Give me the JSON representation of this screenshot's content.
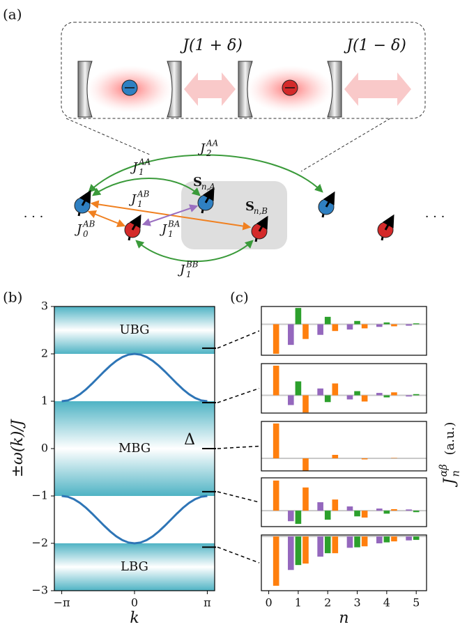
{
  "panel_labels": [
    "(a)",
    "(b)",
    "(c)"
  ],
  "diagram": {
    "couplings": [
      "J(1 + δ)",
      "J(1 − δ)"
    ],
    "labels": [
      {
        "base": "J",
        "sub": "2",
        "sup": "AA"
      },
      {
        "base": "J",
        "sub": "1",
        "sup": "AA"
      },
      {
        "base": "J",
        "sub": "1",
        "sup": "AB"
      },
      {
        "base": "J",
        "sub": "0",
        "sup": "AB"
      },
      {
        "base": "J",
        "sub": "1",
        "sup": "BA"
      },
      {
        "base": "J",
        "sub": "1",
        "sup": "BB"
      }
    ],
    "spins": [
      {
        "base": "S",
        "sub": "n,A"
      },
      {
        "base": "S",
        "sub": "n,B"
      }
    ],
    "ellipsis": [
      "· · ·",
      "· · ·"
    ]
  },
  "chart_data": [
    {
      "type": "band-structure",
      "xlabel": "k",
      "ylabel": "±ω(k)/J",
      "xlim": [
        -3.46,
        3.46
      ],
      "ylim": [
        -3,
        3
      ],
      "xticks": [
        {
          "value": -3.1416,
          "label": "−π"
        },
        0,
        {
          "value": 3.1416,
          "label": "π"
        }
      ],
      "yticks": [
        {
          "value": -3,
          "label": "−3"
        },
        {
          "value": -2,
          "label": "−2"
        },
        {
          "value": -1,
          "label": "−1"
        },
        0,
        1,
        2,
        3
      ],
      "band_color": "#4fb3c4",
      "bands": [
        {
          "label": "UBG",
          "range": [
            2,
            3
          ]
        },
        {
          "label": "MBG",
          "range": [
            -1,
            1
          ]
        },
        {
          "label": "LBG",
          "range": [
            -3,
            -2
          ]
        }
      ],
      "x": [
        -3.1416,
        -2.8798,
        -2.618,
        -2.3562,
        -2.0944,
        -1.8326,
        -1.5708,
        -1.309,
        -1.0472,
        -0.7854,
        -0.5236,
        -0.2618,
        0,
        0.2618,
        0.5236,
        0.7854,
        1.0472,
        1.309,
        1.5708,
        1.8326,
        2.0944,
        2.3562,
        2.618,
        2.8798,
        3.1416
      ],
      "series": [
        {
          "color": "#2e75b6",
          "values": [
            1,
            1.017,
            1.067,
            1.146,
            1.25,
            1.371,
            1.5,
            1.629,
            1.75,
            1.854,
            1.933,
            1.983,
            2,
            1.983,
            1.933,
            1.854,
            1.75,
            1.629,
            1.5,
            1.371,
            1.25,
            1.146,
            1.067,
            1.017,
            1
          ]
        },
        {
          "color": "#2e75b6",
          "values": [
            -1,
            -1.017,
            -1.067,
            -1.146,
            -1.25,
            -1.371,
            -1.5,
            -1.629,
            -1.75,
            -1.854,
            -1.933,
            -1.983,
            -2,
            -1.983,
            -1.933,
            -1.854,
            -1.75,
            -1.629,
            -1.5,
            -1.371,
            -1.25,
            -1.146,
            -1.067,
            -1.017,
            -1
          ]
        }
      ],
      "markers": {
        "values": [
          2.12,
          0.97,
          0,
          -0.91,
          -2.08
        ],
        "labels": [
          null,
          null,
          "Δ",
          null,
          null
        ]
      }
    },
    {
      "type": "bar",
      "xlim": [
        -0.25,
        5.35
      ],
      "ylim": [
        -1.05,
        0.6
      ],
      "series": [
        {
          "color": "#ff7f0e",
          "x": [
            0.25,
            1.25,
            2.25,
            3.25,
            4.25
          ],
          "values": [
            -1,
            -0.5,
            -0.23,
            -0.14,
            -0.07
          ]
        },
        {
          "color": "#9467bd",
          "x": [
            0.75,
            1.75,
            2.75,
            3.75,
            4.75
          ],
          "values": [
            -0.7,
            -0.36,
            -0.18,
            -0.09,
            -0.05
          ]
        },
        {
          "color": "#2ca02c",
          "x": [
            1,
            2,
            3,
            4,
            5
          ],
          "values": [
            0.55,
            0.25,
            0.11,
            0.06,
            0.03
          ]
        }
      ]
    },
    {
      "type": "bar",
      "xlim": [
        -0.25,
        5.35
      ],
      "ylim": [
        -0.6,
        1.07
      ],
      "series": [
        {
          "color": "#ff7f0e",
          "x": [
            0.25,
            1.25,
            2.25,
            3.25,
            4.25
          ],
          "values": [
            1,
            -0.58,
            0.4,
            -0.21,
            0.1
          ]
        },
        {
          "color": "#9467bd",
          "x": [
            0.75,
            1.75,
            2.75,
            3.75,
            4.75
          ],
          "values": [
            -0.33,
            0.23,
            -0.14,
            0.08,
            -0.04
          ]
        },
        {
          "color": "#2ca02c",
          "x": [
            1,
            2,
            3,
            4,
            5
          ],
          "values": [
            0.47,
            -0.23,
            0.14,
            -0.07,
            0.04
          ]
        }
      ]
    },
    {
      "type": "bar",
      "xlim": [
        -0.25,
        5.35
      ],
      "ylim": [
        -0.36,
        1.06
      ],
      "ylabel": {
        "base": "J",
        "sub": "n",
        "sup": "αβ",
        "unit": "(a.u.)"
      },
      "series": [
        {
          "color": "#ff7f0e",
          "x": [
            0.25,
            1.25,
            2.25,
            3.25,
            4.25
          ],
          "values": [
            1,
            -0.36,
            0.1,
            -0.03,
            0.01
          ]
        },
        {
          "color": "#9467bd",
          "x": [
            0.75,
            1.75,
            2.75,
            3.75,
            4.75
          ],
          "values": [
            0,
            0,
            0,
            0,
            0
          ]
        },
        {
          "color": "#2ca02c",
          "x": [
            1,
            2,
            3,
            4,
            5
          ],
          "values": [
            0,
            0,
            0,
            0,
            0
          ]
        }
      ]
    },
    {
      "type": "bar",
      "xlim": [
        -0.25,
        5.35
      ],
      "ylim": [
        -0.53,
        1.09
      ],
      "series": [
        {
          "color": "#ff7f0e",
          "x": [
            0.25,
            1.25,
            2.25,
            3.25,
            4.25
          ],
          "values": [
            1,
            0.77,
            0.37,
            -0.23,
            0.05
          ]
        },
        {
          "color": "#9467bd",
          "x": [
            0.75,
            1.75,
            2.75,
            3.75,
            4.75
          ],
          "values": [
            -0.35,
            0.28,
            0.14,
            0.07,
            0.04
          ]
        },
        {
          "color": "#2ca02c",
          "x": [
            1,
            2,
            3,
            4,
            5
          ],
          "values": [
            -0.44,
            -0.3,
            -0.19,
            -0.1,
            -0.05
          ]
        }
      ]
    },
    {
      "type": "bar",
      "xlim": [
        -0.25,
        5.35
      ],
      "ylim": [
        -1.1,
        0.03
      ],
      "xlabel": "n",
      "xticks": [
        0,
        1,
        2,
        3,
        4,
        5
      ],
      "series": [
        {
          "color": "#ff7f0e",
          "x": [
            0.25,
            1.25,
            2.25,
            3.25,
            4.25
          ],
          "values": [
            -1,
            -0.55,
            -0.34,
            -0.2,
            -0.1
          ]
        },
        {
          "color": "#9467bd",
          "x": [
            0.75,
            1.75,
            2.75,
            3.75,
            4.75
          ],
          "values": [
            -0.68,
            -0.41,
            -0.23,
            -0.14,
            -0.08
          ]
        },
        {
          "color": "#2ca02c",
          "x": [
            1,
            2,
            3,
            4,
            5
          ],
          "values": [
            -0.58,
            -0.34,
            -0.22,
            -0.12,
            -0.07
          ]
        }
      ]
    }
  ]
}
